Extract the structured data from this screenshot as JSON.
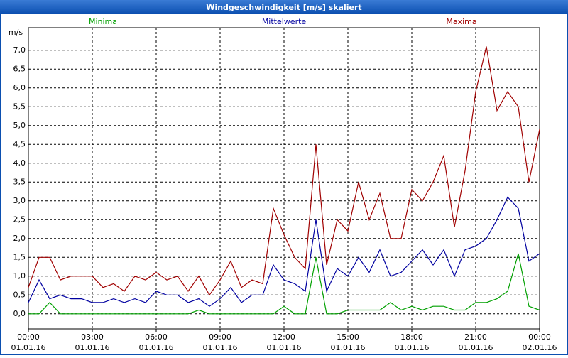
{
  "chart_data": {
    "type": "line",
    "title": "Windgeschwindigkeit [m/s] skaliert",
    "ylabel": "m/s",
    "x": [
      0,
      0.5,
      1,
      1.5,
      2,
      2.5,
      3,
      3.5,
      4,
      4.5,
      5,
      5.5,
      6,
      6.5,
      7,
      7.5,
      8,
      8.5,
      9,
      9.5,
      10,
      10.5,
      11,
      11.5,
      12,
      12.5,
      13,
      13.5,
      14,
      14.5,
      15,
      15.5,
      16,
      16.5,
      17,
      17.5,
      18,
      18.5,
      19,
      19.5,
      20,
      20.5,
      21,
      21.5,
      22,
      22.5,
      23,
      23.5,
      24
    ],
    "series": [
      {
        "name": "Minima",
        "color": "#00a000",
        "values": [
          0,
          0,
          0.3,
          0,
          0,
          0,
          0,
          0,
          0,
          0,
          0,
          0,
          0,
          0,
          0,
          0,
          0.1,
          0,
          0,
          0,
          0,
          0,
          0,
          0,
          0.2,
          0,
          0,
          1.5,
          0,
          0,
          0.1,
          0.1,
          0.1,
          0.1,
          0.3,
          0.1,
          0.2,
          0.1,
          0.2,
          0.2,
          0.1,
          0.1,
          0.3,
          0.3,
          0.4,
          0.6,
          1.6,
          0.2,
          0.1
        ]
      },
      {
        "name": "Mittelwerte",
        "color": "#0000a0",
        "values": [
          0.3,
          0.9,
          0.4,
          0.5,
          0.4,
          0.4,
          0.3,
          0.3,
          0.4,
          0.3,
          0.4,
          0.3,
          0.6,
          0.5,
          0.5,
          0.3,
          0.4,
          0.2,
          0.4,
          0.7,
          0.3,
          0.5,
          0.5,
          1.3,
          0.9,
          0.8,
          0.6,
          2.5,
          0.6,
          1.2,
          1.0,
          1.5,
          1.1,
          1.7,
          1.0,
          1.1,
          1.4,
          1.7,
          1.3,
          1.7,
          1.0,
          1.7,
          1.8,
          2.0,
          2.5,
          3.1,
          2.8,
          1.4,
          1.6
        ]
      },
      {
        "name": "Maxima",
        "color": "#a00000",
        "values": [
          0.7,
          1.5,
          1.5,
          0.9,
          1.0,
          1.0,
          1.0,
          0.7,
          0.8,
          0.6,
          1.0,
          0.9,
          1.1,
          0.9,
          1.0,
          0.6,
          1.0,
          0.5,
          0.9,
          1.4,
          0.7,
          0.9,
          0.8,
          2.8,
          2.1,
          1.5,
          1.2,
          4.5,
          1.3,
          2.5,
          2.2,
          3.5,
          2.5,
          3.2,
          2.0,
          2.0,
          3.3,
          3.0,
          3.5,
          4.2,
          2.3,
          3.8,
          5.9,
          7.1,
          5.4,
          5.9,
          5.5,
          3.5,
          4.9
        ]
      }
    ],
    "xlim": [
      0,
      24
    ],
    "xticks": [
      {
        "value": 0,
        "label": "00:00",
        "date": "01.01.16"
      },
      {
        "value": 3,
        "label": "03:00",
        "date": "01.01.16"
      },
      {
        "value": 6,
        "label": "06:00",
        "date": "01.01.16"
      },
      {
        "value": 9,
        "label": "09:00",
        "date": "01.01.16"
      },
      {
        "value": 12,
        "label": "12:00",
        "date": "01.01.16"
      },
      {
        "value": 15,
        "label": "15:00",
        "date": "01.01.16"
      },
      {
        "value": 18,
        "label": "18:00",
        "date": "01.01.16"
      },
      {
        "value": 21,
        "label": "21:00",
        "date": "01.01.16"
      },
      {
        "value": 24,
        "label": "00:00",
        "date": "02.01.16"
      }
    ],
    "ylim": [
      -0.4,
      7.6
    ],
    "yticks": [
      {
        "value": 0,
        "label": "0,0"
      },
      {
        "value": 0.5,
        "label": "0,5"
      },
      {
        "value": 1,
        "label": "1,0"
      },
      {
        "value": 1.5,
        "label": "1,5"
      },
      {
        "value": 2,
        "label": "2,0"
      },
      {
        "value": 2.5,
        "label": "2,5"
      },
      {
        "value": 3,
        "label": "3,0"
      },
      {
        "value": 3.5,
        "label": "3,5"
      },
      {
        "value": 4,
        "label": "4,0"
      },
      {
        "value": 4.5,
        "label": "4,5"
      },
      {
        "value": 5,
        "label": "5,0"
      },
      {
        "value": 5.5,
        "label": "5,5"
      },
      {
        "value": 6,
        "label": "6,0"
      },
      {
        "value": 6.5,
        "label": "6,5"
      },
      {
        "value": 7,
        "label": "7,0"
      }
    ],
    "grid": true
  }
}
